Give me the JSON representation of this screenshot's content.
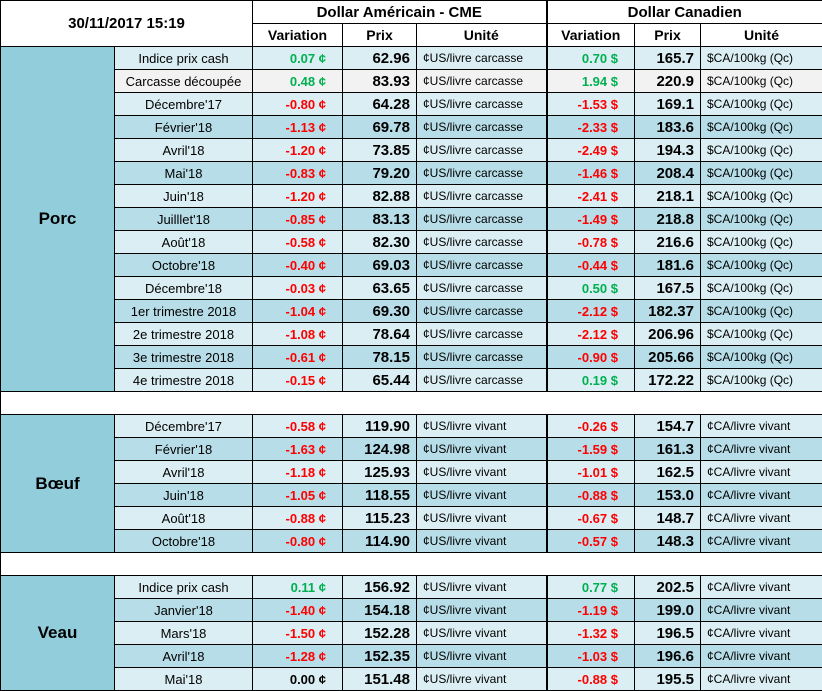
{
  "header": {
    "timestamp": "30/11/2017 15:19",
    "us_title": "Dollar Américain - CME",
    "ca_title": "Dollar Canadien",
    "col_variation": "Variation",
    "col_prix": "Prix",
    "col_unite": "Unité"
  },
  "groups": [
    {
      "name": "Porc",
      "rows": [
        {
          "label": "Indice prix cash",
          "us_var": "0.07 ¢",
          "us_prix": "62.96",
          "us_unit": "¢US/livre carcasse",
          "ca_var": "0.70 $",
          "ca_prix": "165.7",
          "ca_unit": "$CA/100kg (Qc)"
        },
        {
          "label": "Carcasse découpée",
          "us_var": "0.48 ¢",
          "us_prix": "83.93",
          "us_unit": "¢US/livre carcasse",
          "ca_var": "1.94 $",
          "ca_prix": "220.9",
          "ca_unit": "$CA/100kg (Qc)"
        },
        {
          "label": "Décembre'17",
          "us_var": "-0.80 ¢",
          "us_prix": "64.28",
          "us_unit": "¢US/livre carcasse",
          "ca_var": "-1.53 $",
          "ca_prix": "169.1",
          "ca_unit": "$CA/100kg (Qc)"
        },
        {
          "label": "Février'18",
          "us_var": "-1.13 ¢",
          "us_prix": "69.78",
          "us_unit": "¢US/livre carcasse",
          "ca_var": "-2.33 $",
          "ca_prix": "183.6",
          "ca_unit": "$CA/100kg (Qc)"
        },
        {
          "label": "Avril'18",
          "us_var": "-1.20 ¢",
          "us_prix": "73.85",
          "us_unit": "¢US/livre carcasse",
          "ca_var": "-2.49 $",
          "ca_prix": "194.3",
          "ca_unit": "$CA/100kg (Qc)"
        },
        {
          "label": "Mai'18",
          "us_var": "-0.83 ¢",
          "us_prix": "79.20",
          "us_unit": "¢US/livre carcasse",
          "ca_var": "-1.46 $",
          "ca_prix": "208.4",
          "ca_unit": "$CA/100kg (Qc)"
        },
        {
          "label": "Juin'18",
          "us_var": "-1.20 ¢",
          "us_prix": "82.88",
          "us_unit": "¢US/livre carcasse",
          "ca_var": "-2.41 $",
          "ca_prix": "218.1",
          "ca_unit": "$CA/100kg (Qc)"
        },
        {
          "label": "Juilllet'18",
          "us_var": "-0.85 ¢",
          "us_prix": "83.13",
          "us_unit": "¢US/livre carcasse",
          "ca_var": "-1.49 $",
          "ca_prix": "218.8",
          "ca_unit": "$CA/100kg (Qc)"
        },
        {
          "label": "Août'18",
          "us_var": "-0.58 ¢",
          "us_prix": "82.30",
          "us_unit": "¢US/livre carcasse",
          "ca_var": "-0.78 $",
          "ca_prix": "216.6",
          "ca_unit": "$CA/100kg (Qc)"
        },
        {
          "label": "Octobre'18",
          "us_var": "-0.40 ¢",
          "us_prix": "69.03",
          "us_unit": "¢US/livre carcasse",
          "ca_var": "-0.44 $",
          "ca_prix": "181.6",
          "ca_unit": "$CA/100kg (Qc)"
        },
        {
          "label": "Décembre'18",
          "us_var": "-0.03 ¢",
          "us_prix": "63.65",
          "us_unit": "¢US/livre carcasse",
          "ca_var": "0.50 $",
          "ca_prix": "167.5",
          "ca_unit": "$CA/100kg (Qc)"
        },
        {
          "label": "1er trimestre 2018",
          "us_var": "-1.04 ¢",
          "us_prix": "69.30",
          "us_unit": "¢US/livre carcasse",
          "ca_var": "-2.12 $",
          "ca_prix": "182.37",
          "ca_unit": "$CA/100kg (Qc)"
        },
        {
          "label": "2e trimestre 2018",
          "us_var": "-1.08 ¢",
          "us_prix": "78.64",
          "us_unit": "¢US/livre carcasse",
          "ca_var": "-2.12 $",
          "ca_prix": "206.96",
          "ca_unit": "$CA/100kg (Qc)"
        },
        {
          "label": "3e trimestre 2018",
          "us_var": "-0.61 ¢",
          "us_prix": "78.15",
          "us_unit": "¢US/livre carcasse",
          "ca_var": "-0.90 $",
          "ca_prix": "205.66",
          "ca_unit": "$CA/100kg (Qc)"
        },
        {
          "label": "4e trimestre 2018",
          "us_var": "-0.15 ¢",
          "us_prix": "65.44",
          "us_unit": "¢US/livre carcasse",
          "ca_var": "0.19 $",
          "ca_prix": "172.22",
          "ca_unit": "$CA/100kg (Qc)"
        }
      ]
    },
    {
      "name": "Bœuf",
      "rows": [
        {
          "label": "Décembre'17",
          "us_var": "-0.58 ¢",
          "us_prix": "119.90",
          "us_unit": "¢US/livre vivant",
          "ca_var": "-0.26 $",
          "ca_prix": "154.7",
          "ca_unit": "¢CA/livre vivant"
        },
        {
          "label": "Février'18",
          "us_var": "-1.63 ¢",
          "us_prix": "124.98",
          "us_unit": "¢US/livre vivant",
          "ca_var": "-1.59 $",
          "ca_prix": "161.3",
          "ca_unit": "¢CA/livre vivant"
        },
        {
          "label": "Avril'18",
          "us_var": "-1.18 ¢",
          "us_prix": "125.93",
          "us_unit": "¢US/livre vivant",
          "ca_var": "-1.01 $",
          "ca_prix": "162.5",
          "ca_unit": "¢CA/livre vivant"
        },
        {
          "label": "Juin'18",
          "us_var": "-1.05 ¢",
          "us_prix": "118.55",
          "us_unit": "¢US/livre vivant",
          "ca_var": "-0.88 $",
          "ca_prix": "153.0",
          "ca_unit": "¢CA/livre vivant"
        },
        {
          "label": "Août'18",
          "us_var": "-0.88 ¢",
          "us_prix": "115.23",
          "us_unit": "¢US/livre vivant",
          "ca_var": "-0.67 $",
          "ca_prix": "148.7",
          "ca_unit": "¢CA/livre vivant"
        },
        {
          "label": "Octobre'18",
          "us_var": "-0.80 ¢",
          "us_prix": "114.90",
          "us_unit": "¢US/livre vivant",
          "ca_var": "-0.57 $",
          "ca_prix": "148.3",
          "ca_unit": "¢CA/livre vivant"
        }
      ]
    },
    {
      "name": "Veau",
      "rows": [
        {
          "label": "Indice prix cash",
          "us_var": "0.11 ¢",
          "us_prix": "156.92",
          "us_unit": "¢US/livre vivant",
          "ca_var": "0.77 $",
          "ca_prix": "202.5",
          "ca_unit": "¢CA/livre vivant"
        },
        {
          "label": "Janvier'18",
          "us_var": "-1.40 ¢",
          "us_prix": "154.18",
          "us_unit": "¢US/livre vivant",
          "ca_var": "-1.19 $",
          "ca_prix": "199.0",
          "ca_unit": "¢CA/livre vivant"
        },
        {
          "label": "Mars'18",
          "us_var": "-1.50 ¢",
          "us_prix": "152.28",
          "us_unit": "¢US/livre vivant",
          "ca_var": "-1.32 $",
          "ca_prix": "196.5",
          "ca_unit": "¢CA/livre vivant"
        },
        {
          "label": "Avril'18",
          "us_var": "-1.28 ¢",
          "us_prix": "152.35",
          "us_unit": "¢US/livre vivant",
          "ca_var": "-1.03 $",
          "ca_prix": "196.6",
          "ca_unit": "¢CA/livre vivant"
        },
        {
          "label": "Mai'18",
          "us_var": "0.00 ¢",
          "us_prix": "151.48",
          "us_unit": "¢US/livre vivant",
          "ca_var": "-0.88 $",
          "ca_prix": "195.5",
          "ca_unit": "¢CA/livre vivant"
        }
      ]
    }
  ],
  "colors": {
    "negative": "#ff0000",
    "positive": "#00b050",
    "group_bg": "#92cddc",
    "row_light": "#daeef3",
    "row_dark": "#b7dee8"
  }
}
